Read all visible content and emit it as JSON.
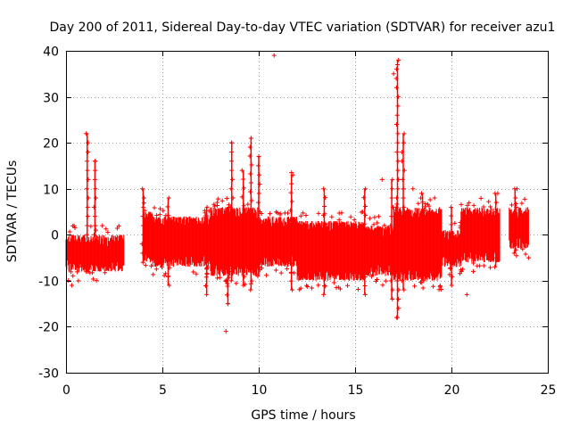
{
  "chart_data": {
    "type": "scatter",
    "title": "Day 200 of 2011, Sidereal Day-to-day VTEC variation (SDTVAR) for receiver azu1",
    "xlabel": "GPS time / hours",
    "ylabel": "SDTVAR / TECUs",
    "xlim": [
      0,
      25
    ],
    "ylim": [
      -30,
      40
    ],
    "xticks": [
      "0",
      "5",
      "10",
      "15",
      "20",
      "25"
    ],
    "yticks": [
      "-30",
      "-20",
      "-10",
      "0",
      "10",
      "20",
      "30",
      "40"
    ],
    "grid": true,
    "marker": "+",
    "color": "#ff0000",
    "bands": [
      {
        "x": [
          0.0,
          3.0
        ],
        "low": -8,
        "high": 0
      },
      {
        "x": [
          4.0,
          4.5
        ],
        "low": -6,
        "high": 5
      },
      {
        "x": [
          4.5,
          7.5
        ],
        "low": -7,
        "high": 4
      },
      {
        "x": [
          7.5,
          10.0
        ],
        "low": -9,
        "high": 6
      },
      {
        "x": [
          10.0,
          12.0
        ],
        "low": -7,
        "high": 4
      },
      {
        "x": [
          12.0,
          15.5
        ],
        "low": -10,
        "high": 3
      },
      {
        "x": [
          15.5,
          17.0
        ],
        "low": -9,
        "high": 2
      },
      {
        "x": [
          17.0,
          19.5
        ],
        "low": -10,
        "high": 6
      },
      {
        "x": [
          19.5,
          20.5
        ],
        "low": -7,
        "high": 1
      },
      {
        "x": [
          20.5,
          22.5
        ],
        "low": -6,
        "high": 6
      },
      {
        "x": [
          23.0,
          24.0
        ],
        "low": -3,
        "high": 6
      }
    ],
    "spikes": [
      {
        "x": 1.1,
        "low": -8,
        "high": 22
      },
      {
        "x": 1.5,
        "low": -6,
        "high": 16
      },
      {
        "x": 4.0,
        "low": -6,
        "high": 10
      },
      {
        "x": 5.3,
        "low": -11,
        "high": 8
      },
      {
        "x": 7.3,
        "low": -13,
        "high": 6
      },
      {
        "x": 8.4,
        "low": -15,
        "high": 6
      },
      {
        "x": 8.6,
        "low": -10,
        "high": 20
      },
      {
        "x": 9.2,
        "low": -11,
        "high": 14
      },
      {
        "x": 9.6,
        "low": -12,
        "high": 21
      },
      {
        "x": 10.0,
        "low": -9,
        "high": 17
      },
      {
        "x": 11.7,
        "low": -12,
        "high": 13
      },
      {
        "x": 13.4,
        "low": -13,
        "high": 10
      },
      {
        "x": 15.5,
        "low": -13,
        "high": 10
      },
      {
        "x": 16.9,
        "low": -14,
        "high": 12
      },
      {
        "x": 17.2,
        "low": -18,
        "high": 38
      },
      {
        "x": 17.5,
        "low": -12,
        "high": 22
      },
      {
        "x": 18.5,
        "low": -10,
        "high": 9
      },
      {
        "x": 20.0,
        "low": -11,
        "high": 6
      },
      {
        "x": 22.3,
        "low": -7,
        "high": 9
      },
      {
        "x": 23.3,
        "low": -4,
        "high": 10
      }
    ],
    "outliers": [
      {
        "x": 1.05,
        "y": 22
      },
      {
        "x": 1.5,
        "y": 16
      },
      {
        "x": 8.6,
        "y": 20
      },
      {
        "x": 9.6,
        "y": 21
      },
      {
        "x": 10.0,
        "y": 17
      },
      {
        "x": 10.8,
        "y": 39
      },
      {
        "x": 11.7,
        "y": 13.5
      },
      {
        "x": 8.3,
        "y": -21
      },
      {
        "x": 8.4,
        "y": -15
      },
      {
        "x": 16.4,
        "y": 12
      },
      {
        "x": 17.0,
        "y": 35
      },
      {
        "x": 17.2,
        "y": 37
      },
      {
        "x": 17.2,
        "y": -18
      },
      {
        "x": 18.0,
        "y": 10
      },
      {
        "x": 20.8,
        "y": -13
      },
      {
        "x": 0.3,
        "y": -11
      },
      {
        "x": 5.3,
        "y": -9
      },
      {
        "x": 24.0,
        "y": -5
      },
      {
        "x": 23.4,
        "y": 10
      },
      {
        "x": 22.4,
        "y": 9
      }
    ]
  }
}
